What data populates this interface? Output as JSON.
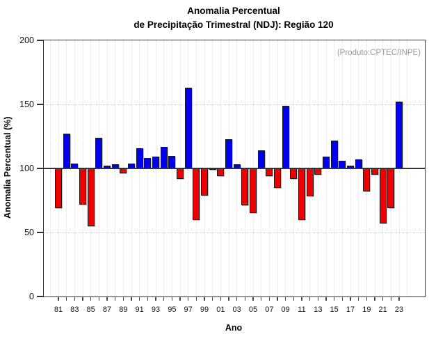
{
  "header": {
    "title_line1": "Anomalia Percentual",
    "title_line2": "de Precipitação Trimestral (NDJ): Região 120"
  },
  "annotation": "(Produto:CPTEC/INPE)",
  "axes": {
    "y_title": "Anomalia Percentual (%)",
    "x_title": "Ano",
    "y_ticks": [
      0,
      50,
      100,
      150,
      200
    ]
  },
  "colors": {
    "positive_bar": "#0000ee",
    "negative_bar": "#ee0000",
    "baseline": "#333333",
    "grid": "#dddddd",
    "annotation_text": "#9a9a9a"
  },
  "chart_data": {
    "type": "bar",
    "title": "Anomalia Percentual de Precipitação Trimestral (NDJ): Região 120",
    "xlabel": "Ano",
    "ylabel": "Anomalia Percentual (%)",
    "ylim": [
      0,
      200
    ],
    "baseline": 100,
    "grid_h_lines": [
      50,
      150
    ],
    "legend": "none",
    "x": [
      1981,
      1982,
      1983,
      1984,
      1985,
      1986,
      1987,
      1988,
      1989,
      1990,
      1991,
      1992,
      1993,
      1994,
      1995,
      1996,
      1997,
      1998,
      1999,
      2000,
      2001,
      2002,
      2003,
      2004,
      2005,
      2006,
      2007,
      2008,
      2009,
      2010,
      2011,
      2012,
      2013,
      2014,
      2015,
      2016,
      2017,
      2018,
      2019,
      2020,
      2021,
      2022,
      2023
    ],
    "x_tick_labels": [
      "81",
      "83",
      "85",
      "87",
      "89",
      "91",
      "93",
      "95",
      "97",
      "99",
      "01",
      "03",
      "05",
      "07",
      "09",
      "11",
      "13",
      "15",
      "17",
      "19",
      "21",
      "23"
    ],
    "series": [
      {
        "name": "Anomalia Percentual (%)",
        "values": [
          69,
          127,
          104,
          72,
          55,
          124,
          102,
          103,
          96,
          104,
          116,
          108,
          109,
          117,
          110,
          92,
          163,
          60,
          79,
          100,
          94,
          123,
          103,
          71,
          65,
          114,
          94,
          85,
          149,
          92,
          60,
          78,
          95,
          109,
          122,
          106,
          102,
          107,
          82,
          95,
          57,
          69,
          152
        ]
      }
    ]
  }
}
